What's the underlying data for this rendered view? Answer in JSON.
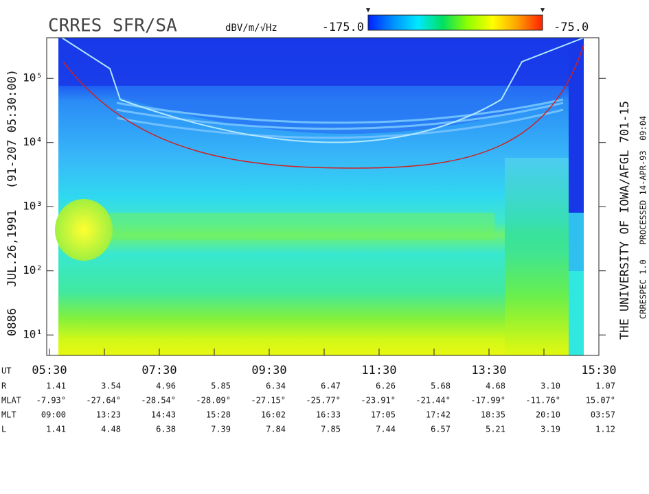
{
  "chart_data": {
    "type": "spectrogram",
    "title": "CRRES SFR/SA",
    "colorbar_unit": "dBV/m/√Hz",
    "colorbar_min": {
      "value": -175,
      "label": "-175.0"
    },
    "colorbar_max": {
      "value": -75,
      "label": "-75.0"
    },
    "colorbar_colors": [
      "#0020ff",
      "#0090ff",
      "#00e8ff",
      "#00e060",
      "#90ff00",
      "#ffff00",
      "#ffa000",
      "#ff2000"
    ],
    "left_label": "0886   JUL.26,1991   (91-207 05:30:00)",
    "right_label": "THE UNIVERSITY OF IOWA/AFGL 701-15",
    "right_sublabel": "CRRESPEC 1.0   PROCESSED 14-APR-93  09:04",
    "log_y": true,
    "ylim": [
      4.8,
      430000
    ],
    "yticks": [
      {
        "value": 10,
        "label": "10¹"
      },
      {
        "value": 100,
        "label": "10²"
      },
      {
        "value": 1000,
        "label": "10³"
      },
      {
        "value": 10000,
        "label": "10⁴"
      },
      {
        "value": 100000,
        "label": "10⁵"
      }
    ],
    "x_axis_label": "UT",
    "x": [
      "05:30",
      null,
      "07:30",
      null,
      "09:30",
      null,
      "11:30",
      null,
      "13:30",
      null,
      "15:30"
    ]
  },
  "ephemeris": {
    "rows": [
      {
        "label": "R",
        "values": [
          "1.41",
          "3.54",
          "4.96",
          "5.85",
          "6.34",
          "6.47",
          "6.26",
          "5.68",
          "4.68",
          "3.10",
          "1.07"
        ]
      },
      {
        "label": "MLAT",
        "values": [
          "-7.93°",
          "-27.64°",
          "-28.54°",
          "-28.09°",
          "-27.15°",
          "-25.77°",
          "-23.91°",
          "-21.44°",
          "-17.99°",
          "-11.76°",
          "15.07°"
        ]
      },
      {
        "label": "MLT",
        "values": [
          "09:00",
          "13:23",
          "14:43",
          "15:28",
          "16:02",
          "16:33",
          "17:05",
          "17:42",
          "18:35",
          "20:10",
          "03:57"
        ]
      },
      {
        "label": "L",
        "values": [
          "1.41",
          "4.48",
          "6.38",
          "7.39",
          "7.84",
          "7.85",
          "7.44",
          "6.57",
          "5.21",
          "3.19",
          "1.12"
        ]
      }
    ]
  }
}
